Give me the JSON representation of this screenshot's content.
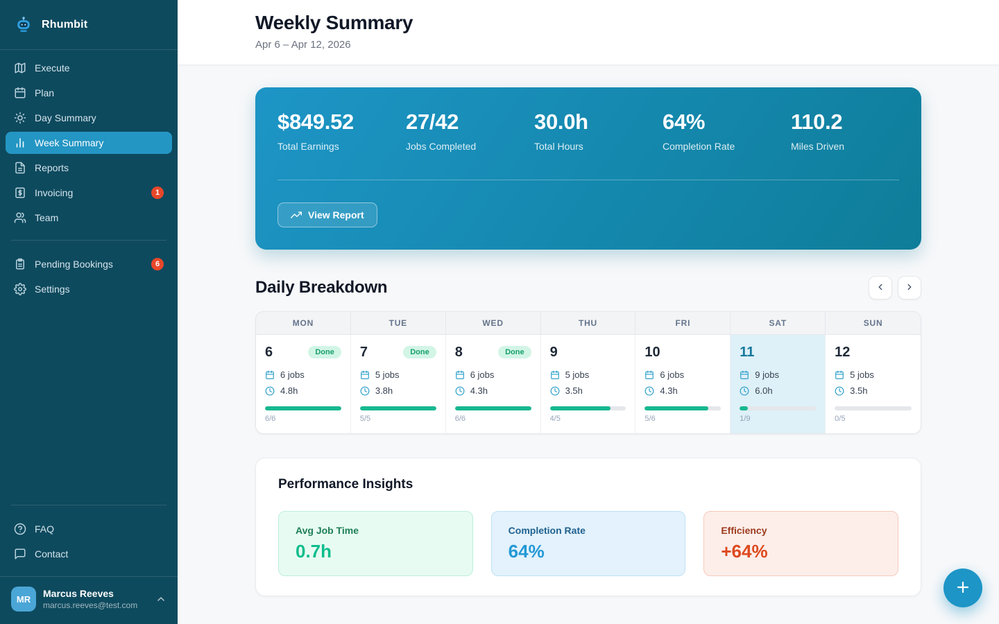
{
  "colors": {
    "sidebar-bg": "#0e4a5e",
    "sidebar-active": "#2496c4",
    "badge-red": "#e8472a",
    "avatar-bg": "#4aa6d6",
    "hero-from": "#1d95c6",
    "hero-to": "#0e7d99",
    "progress-green": "#17b890",
    "done-bg": "#d2f5e6",
    "done-text": "#18a06b",
    "today-bg": "#def0f8",
    "today-text": "#16789c",
    "fab-bg": "#1d95c6"
  },
  "sidebar": {
    "brand": "Rhumbit",
    "nav_main": [
      {
        "label": "Execute",
        "icon": "map-icon"
      },
      {
        "label": "Plan",
        "icon": "calendar-icon"
      },
      {
        "label": "Day Summary",
        "icon": "sun-icon"
      },
      {
        "label": "Week Summary",
        "icon": "bar-chart-icon",
        "active": true
      },
      {
        "label": "Reports",
        "icon": "file-text-icon"
      },
      {
        "label": "Invoicing",
        "icon": "invoice-icon",
        "badge": "1"
      },
      {
        "label": "Team",
        "icon": "users-icon"
      }
    ],
    "nav_secondary": [
      {
        "label": "Pending Bookings",
        "icon": "clipboard-icon",
        "badge": "6"
      },
      {
        "label": "Settings",
        "icon": "gear-icon"
      }
    ],
    "nav_footer": [
      {
        "label": "FAQ",
        "icon": "help-circle-icon"
      },
      {
        "label": "Contact",
        "icon": "message-icon"
      }
    ],
    "user": {
      "initials": "MR",
      "name": "Marcus Reeves",
      "email": "marcus.reeves@test.com"
    }
  },
  "header": {
    "title": "Weekly Summary",
    "date_range": "Apr 6 – Apr 12, 2026"
  },
  "summary_card": {
    "stats": [
      {
        "value": "$849.52",
        "label": "Total Earnings"
      },
      {
        "value": "27/42",
        "label": "Jobs Completed"
      },
      {
        "value": "30.0h",
        "label": "Total Hours"
      },
      {
        "value": "64%",
        "label": "Completion Rate"
      },
      {
        "value": "110.2",
        "label": "Miles Driven"
      }
    ],
    "button_label": "View Report"
  },
  "daily_breakdown": {
    "title": "Daily Breakdown",
    "days": [
      {
        "dow": "MON",
        "date": "6",
        "done": true,
        "today": false,
        "jobs_label": "6 jobs",
        "hours_label": "4.8h",
        "completed": 6,
        "total": 6
      },
      {
        "dow": "TUE",
        "date": "7",
        "done": true,
        "today": false,
        "jobs_label": "5 jobs",
        "hours_label": "3.8h",
        "completed": 5,
        "total": 5
      },
      {
        "dow": "WED",
        "date": "8",
        "done": true,
        "today": false,
        "jobs_label": "6 jobs",
        "hours_label": "4.3h",
        "completed": 6,
        "total": 6
      },
      {
        "dow": "THU",
        "date": "9",
        "done": false,
        "today": false,
        "jobs_label": "5 jobs",
        "hours_label": "3.5h",
        "completed": 4,
        "total": 5
      },
      {
        "dow": "FRI",
        "date": "10",
        "done": false,
        "today": false,
        "jobs_label": "6 jobs",
        "hours_label": "4.3h",
        "completed": 5,
        "total": 6
      },
      {
        "dow": "SAT",
        "date": "11",
        "done": false,
        "today": true,
        "jobs_label": "9 jobs",
        "hours_label": "6.0h",
        "completed": 1,
        "total": 9
      },
      {
        "dow": "SUN",
        "date": "12",
        "done": false,
        "today": false,
        "jobs_label": "5 jobs",
        "hours_label": "3.5h",
        "completed": 0,
        "total": 5
      }
    ],
    "done_badge_label": "Done"
  },
  "insights": {
    "title": "Performance Insights",
    "cards": [
      {
        "label": "Avg Job Time",
        "value": "0.7h",
        "bg": "#e7fbf2",
        "border": "#bdeeda",
        "label_color": "#1e7f57",
        "value_color": "#0fbd8c"
      },
      {
        "label": "Completion Rate",
        "value": "64%",
        "bg": "#e3f2fc",
        "border": "#bfe1f4",
        "label_color": "#20628f",
        "value_color": "#2499d6"
      },
      {
        "label": "Efficiency",
        "value": "+64%",
        "bg": "#fdeeea",
        "border": "#f7c9ba",
        "label_color": "#9c3a1c",
        "value_color": "#dd4a1f"
      }
    ]
  }
}
